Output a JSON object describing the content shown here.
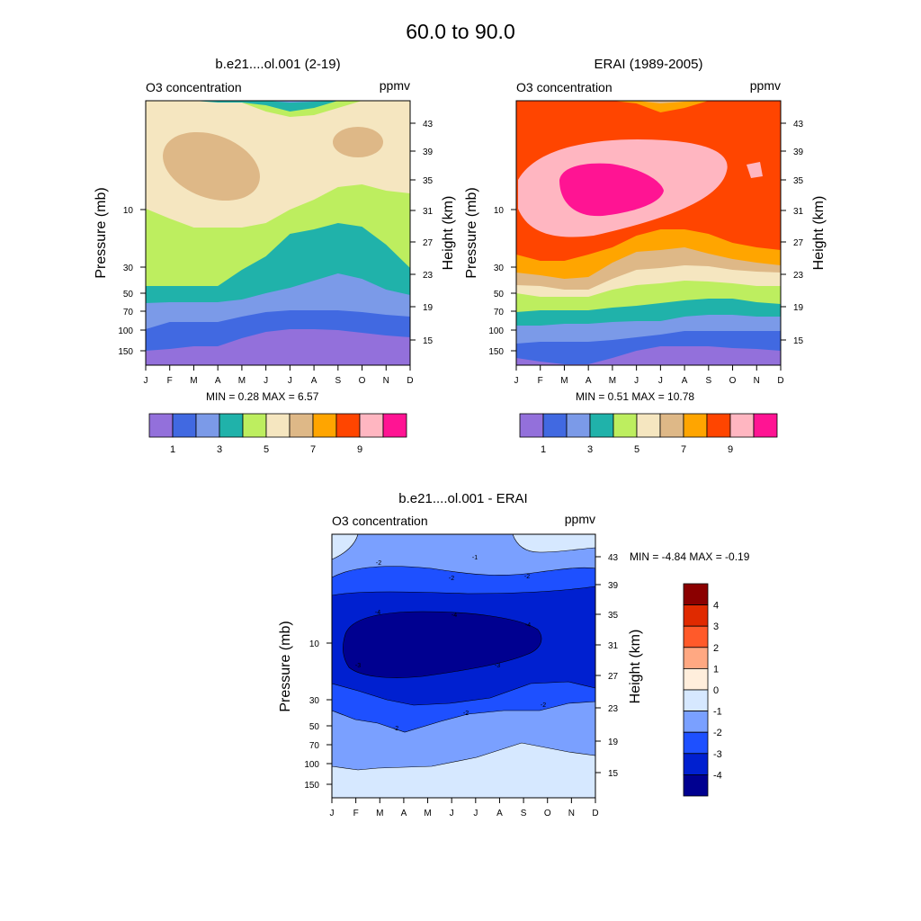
{
  "figure_title": "60.0 to  90.0",
  "chart_data": [
    {
      "type": "heatmap",
      "title": "b.e21....ol.001 (2-19)",
      "left_label": "O3 concentration",
      "right_label": "ppmv",
      "xlabel": "",
      "ylabel": "Pressure (mb)",
      "ylabel_right": "Height (km)",
      "x_ticks": [
        "J",
        "F",
        "M",
        "A",
        "M",
        "J",
        "J",
        "A",
        "S",
        "O",
        "N",
        "D"
      ],
      "y_ticks": [
        "10",
        "30",
        "50",
        "70",
        "100",
        "150"
      ],
      "y_ticks_right": [
        "43",
        "39",
        "35",
        "31",
        "27",
        "23",
        "19",
        "15"
      ],
      "minmax_text": "MIN =   0.28  MAX =   6.57",
      "colorbar": {
        "colors": [
          "#9370db",
          "#4169e1",
          "#7b9ae8",
          "#20b2aa",
          "#bdee5f",
          "#f5e6c0",
          "#deb887",
          "#ffa500",
          "#ff4500",
          "#ffb6c1",
          "#ff1493"
        ],
        "labels": [
          "1",
          "3",
          "5",
          "7",
          "9"
        ]
      },
      "bands_bottom_to_top": [
        {
          "level": 0,
          "upper": [
            390,
            388,
            385,
            385,
            376,
            369,
            366,
            366,
            367,
            370,
            373,
            375
          ]
        },
        {
          "level": 1,
          "upper": [
            366,
            358,
            358,
            358,
            352,
            347,
            345,
            345,
            345,
            347,
            350,
            352
          ]
        },
        {
          "level": 2,
          "upper": [
            337,
            336,
            336,
            336,
            333,
            326,
            320,
            312,
            304,
            310,
            322,
            328
          ]
        },
        {
          "level": 3,
          "upper": [
            318,
            318,
            318,
            318,
            300,
            285,
            260,
            255,
            248,
            252,
            272,
            298
          ]
        },
        {
          "level": 4,
          "upper": [
            232,
            243,
            253,
            253,
            253,
            248,
            233,
            222,
            208,
            205,
            212,
            215
          ]
        },
        {
          "level": 5,
          "upper": [
            112,
            112,
            112,
            112,
            112,
            112,
            112,
            112,
            112,
            112,
            112,
            112
          ]
        }
      ],
      "top_layers": [
        {
          "level": 4,
          "top": [
            112,
            112,
            112,
            112,
            114,
            124,
            130,
            128,
            120,
            112,
            112,
            112
          ]
        },
        {
          "level": 3,
          "top": [
            112,
            112,
            112,
            114,
            114,
            117,
            124,
            120,
            112,
            112,
            112,
            112
          ]
        },
        {
          "level": 2,
          "top": [
            112,
            112,
            112,
            112,
            112,
            112,
            114,
            113,
            112,
            112,
            112,
            112
          ]
        }
      ],
      "blobs": [
        {
          "level": 6,
          "region": "Feb-May near 33 km"
        },
        {
          "level": 6,
          "region": "Sep-Oct near 38 km"
        }
      ]
    },
    {
      "type": "heatmap",
      "title": "ERAI (1989-2005)",
      "left_label": "O3 concentration",
      "right_label": "ppmv",
      "xlabel": "",
      "ylabel": "Pressure (mb)",
      "ylabel_right": "Height (km)",
      "x_ticks": [
        "J",
        "F",
        "M",
        "A",
        "M",
        "J",
        "J",
        "A",
        "S",
        "O",
        "N",
        "D"
      ],
      "y_ticks": [
        "10",
        "30",
        "50",
        "70",
        "100",
        "150"
      ],
      "y_ticks_right": [
        "43",
        "39",
        "35",
        "31",
        "27",
        "23",
        "19",
        "15"
      ],
      "minmax_text": "MIN =   0.51  MAX =  10.78",
      "colorbar": {
        "colors": [
          "#9370db",
          "#4169e1",
          "#7b9ae8",
          "#20b2aa",
          "#bdee5f",
          "#f5e6c0",
          "#deb887",
          "#ffa500",
          "#ff4500",
          "#ffb6c1",
          "#ff1493"
        ],
        "labels": [
          "1",
          "3",
          "5",
          "7",
          "9"
        ]
      },
      "bands_bottom_to_top": [
        {
          "level": 0,
          "upper": [
            398,
            402,
            405,
            405,
            398,
            390,
            385,
            385,
            385,
            387,
            388,
            390
          ]
        },
        {
          "level": 1,
          "upper": [
            382,
            380,
            380,
            380,
            378,
            375,
            372,
            368,
            368,
            368,
            368,
            368
          ]
        },
        {
          "level": 2,
          "upper": [
            362,
            362,
            360,
            360,
            358,
            357,
            357,
            352,
            350,
            350,
            352,
            352
          ]
        },
        {
          "level": 3,
          "upper": [
            347,
            345,
            345,
            345,
            342,
            340,
            337,
            334,
            332,
            332,
            336,
            338
          ]
        },
        {
          "level": 4,
          "upper": [
            326,
            330,
            330,
            330,
            322,
            317,
            315,
            312,
            313,
            315,
            318,
            318
          ]
        },
        {
          "level": 5,
          "upper": [
            317,
            318,
            322,
            322,
            310,
            300,
            298,
            295,
            296,
            300,
            302,
            303
          ]
        },
        {
          "level": 6,
          "upper": [
            303,
            306,
            310,
            308,
            292,
            280,
            278,
            275,
            282,
            288,
            292,
            295
          ]
        },
        {
          "level": 7,
          "upper": [
            283,
            290,
            290,
            283,
            275,
            262,
            255,
            255,
            260,
            270,
            275,
            278
          ]
        },
        {
          "level": 8,
          "upper": [
            112,
            112,
            112,
            112,
            112,
            112,
            112,
            112,
            112,
            112,
            112,
            112
          ]
        }
      ],
      "top_layers": [
        {
          "level": 7,
          "top": [
            112,
            112,
            112,
            112,
            112,
            115,
            125,
            120,
            112,
            112,
            112,
            112
          ]
        },
        {
          "level": 6,
          "top": [
            112,
            112,
            112,
            112,
            112,
            112,
            115,
            113,
            112,
            112,
            112,
            112
          ]
        },
        {
          "level": 5,
          "top": [
            112,
            112,
            112,
            112,
            112,
            112,
            112,
            112,
            112,
            112,
            112,
            112
          ]
        }
      ],
      "blobs": [
        {
          "level": 9,
          "region": "Jan-Sep near 33 km"
        },
        {
          "level": 10,
          "region": "Mar-Jun near 33 km"
        },
        {
          "level": 9,
          "region": "Nov small patch near 36 km"
        }
      ]
    },
    {
      "type": "heatmap",
      "title": "b.e21....ol.001 - ERAI",
      "left_label": "O3 concentration",
      "right_label": "ppmv",
      "xlabel": "",
      "ylabel": "Pressure (mb)",
      "ylabel_right": "Height (km)",
      "x_ticks": [
        "J",
        "F",
        "M",
        "A",
        "M",
        "J",
        "J",
        "A",
        "S",
        "O",
        "N",
        "D"
      ],
      "y_ticks": [
        "10",
        "30",
        "50",
        "70",
        "100",
        "150"
      ],
      "y_ticks_right": [
        "43",
        "39",
        "35",
        "31",
        "27",
        "23",
        "19",
        "15"
      ],
      "minmax_text": "MIN =  -4.84  MAX =  -0.19",
      "colorbar": {
        "colors": [
          "#000090",
          "#0020d0",
          "#1e50ff",
          "#7aa0ff",
          "#d6e8ff",
          "#ffeedc",
          "#ffa882",
          "#ff5a2a",
          "#e02a00",
          "#8b0000"
        ],
        "labels": [
          "-4",
          "-3",
          "-2",
          "-1",
          "0",
          "1",
          "2",
          "3",
          "4"
        ]
      },
      "contour_labels": [
        "-2",
        "-1",
        "-2",
        "-2",
        "-4",
        "-4",
        "-4",
        "-3",
        "-3",
        "-2",
        "-2",
        "-2"
      ],
      "bands_bottom_to_top": [
        {
          "level": -1,
          "upper": [
            852,
            856,
            854,
            854,
            854,
            850,
            842,
            836,
            826,
            830,
            836,
            840
          ]
        },
        {
          "level": -2,
          "upper": [
            790,
            800,
            812,
            812,
            810,
            798,
            792,
            790,
            790,
            784,
            782,
            780
          ]
        }
      ],
      "regions": [
        {
          "level": -3,
          "region": "band from 20 to 37 km across all months"
        },
        {
          "level": -4,
          "region": "core Jan-Sep 26 to 35 km"
        }
      ]
    }
  ]
}
